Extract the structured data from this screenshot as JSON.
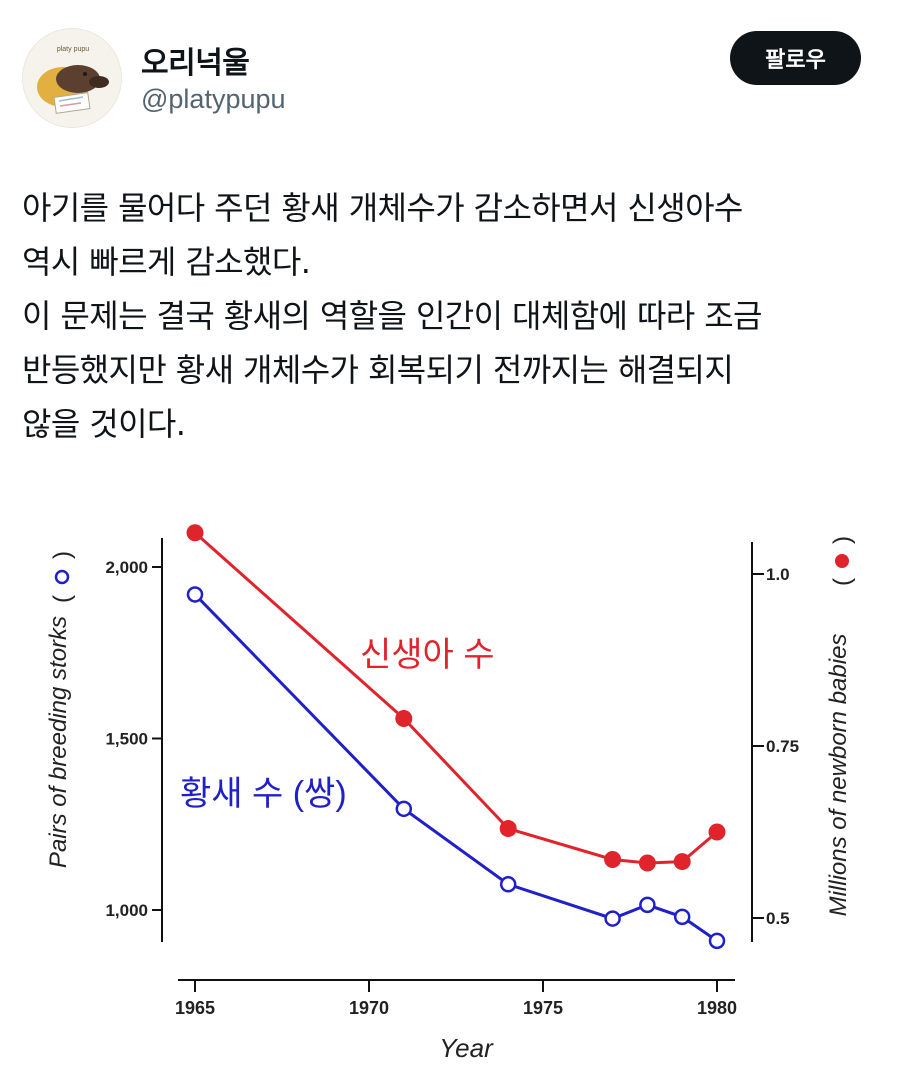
{
  "user": {
    "display_name": "오리넉울",
    "handle": "@platypupu",
    "follow_label": "팔로우",
    "avatar_icon": "platypus-avatar"
  },
  "tweet": {
    "lines": [
      "아기를 물어다 주던 황새 개체수가 감소하면서 신생아수",
      "역시 빠르게 감소했다.",
      "이 문제는 결국 황새의 역할을 인간이 대체함에 따라 조금",
      "반등했지만 황새 개체수가 회복되기 전까지는 해결되지",
      "않을 것이다."
    ]
  },
  "chart_data": {
    "type": "line",
    "xlabel": "Year",
    "ylabel_left": "Pairs of breeding storks",
    "ylabel_right": "Millions of newborn babies",
    "x_ticks": [
      1965,
      1970,
      1975,
      1980
    ],
    "x_tick_labels": [
      "1965",
      "1970",
      "1975",
      "1980"
    ],
    "xlim": [
      1964.5,
      1980.5
    ],
    "y_left_ticks": [
      1000,
      1500,
      2000
    ],
    "y_left_tick_labels": [
      "1,000",
      "1,500",
      "2,000"
    ],
    "ylim_left": [
      900,
      2100
    ],
    "y_right_ticks": [
      0.5,
      0.75,
      1.0
    ],
    "y_right_tick_labels": [
      "0.5",
      "0.75",
      "1.0"
    ],
    "ylim_right": [
      0.46,
      1.14
    ],
    "series": [
      {
        "name": "황새 수 (쌍)",
        "axis": "left",
        "color": "#2020c8",
        "marker": "open-circle",
        "x": [
          1965,
          1971,
          1974,
          1977,
          1978,
          1979,
          1980
        ],
        "y": [
          1920,
          1295,
          1075,
          975,
          1015,
          980,
          910
        ]
      },
      {
        "name": "신생아 수",
        "axis": "right",
        "color": "#e0242c",
        "marker": "filled-circle",
        "x": [
          1965,
          1971,
          1974,
          1977,
          1978,
          1979,
          1980
        ],
        "y": [
          1.06,
          0.79,
          0.63,
          0.585,
          0.58,
          0.582,
          0.625
        ]
      }
    ]
  }
}
